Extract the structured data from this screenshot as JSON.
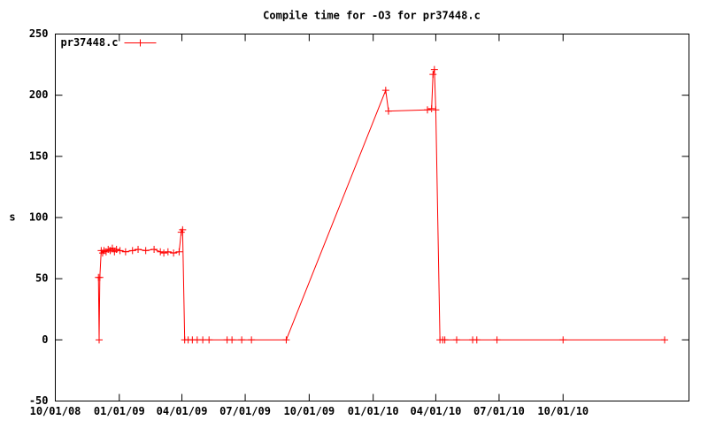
{
  "chart_data": {
    "type": "line",
    "title": "Compile time for -O3 for pr37448.c",
    "y_label": "s",
    "x": [
      "2008-12-02",
      "2008-12-03",
      "2008-12-04",
      "2008-12-06",
      "2008-12-08",
      "2008-12-10",
      "2008-12-13",
      "2008-12-16",
      "2008-12-19",
      "2008-12-22",
      "2008-12-25",
      "2008-12-28",
      "2009-01-02",
      "2009-01-10",
      "2009-01-20",
      "2009-01-28",
      "2009-02-08",
      "2009-02-20",
      "2009-03-01",
      "2009-03-06",
      "2009-03-12",
      "2009-03-20",
      "2009-03-28",
      "2009-03-31",
      "2009-04-02",
      "2009-04-05",
      "2009-04-10",
      "2009-04-16",
      "2009-04-23",
      "2009-05-01",
      "2009-05-10",
      "2009-06-05",
      "2009-06-12",
      "2009-06-26",
      "2009-07-10",
      "2009-08-29",
      "2010-01-19",
      "2010-01-23",
      "2010-03-20",
      "2010-03-26",
      "2010-03-28",
      "2010-03-30",
      "2010-04-01",
      "2010-04-07",
      "2010-04-11",
      "2010-04-14",
      "2010-05-01",
      "2010-05-24",
      "2010-05-30",
      "2010-06-28",
      "2010-10-01",
      "2011-02-24"
    ],
    "series": [
      {
        "name": "pr37448.c",
        "color": "#ff0000",
        "values": [
          51,
          0,
          51,
          73,
          71,
          73,
          72,
          74,
          73,
          75,
          72,
          74,
          73,
          72,
          73,
          74,
          73,
          74,
          72,
          71,
          72,
          71,
          72,
          88,
          90,
          0,
          0,
          0,
          0,
          0,
          0,
          0,
          0,
          0,
          0,
          0,
          204,
          187,
          188,
          189,
          217,
          221,
          188,
          0,
          0,
          0,
          0,
          0,
          0,
          0,
          0,
          0
        ]
      }
    ],
    "xlim": [
      "2008-10-01",
      "2011-03-31"
    ],
    "xticks": [
      {
        "value": "2008-10-01",
        "label": "10/01/08"
      },
      {
        "value": "2009-01-01",
        "label": "01/01/09"
      },
      {
        "value": "2009-04-01",
        "label": "04/01/09"
      },
      {
        "value": "2009-07-01",
        "label": "07/01/09"
      },
      {
        "value": "2009-10-01",
        "label": "10/01/09"
      },
      {
        "value": "2010-01-01",
        "label": "01/01/10"
      },
      {
        "value": "2010-04-01",
        "label": "04/01/10"
      },
      {
        "value": "2010-07-01",
        "label": "07/01/10"
      },
      {
        "value": "2010-10-01",
        "label": "10/01/10"
      }
    ],
    "ylim": [
      -50,
      250
    ],
    "yticks": [
      -50,
      0,
      50,
      100,
      150,
      200,
      250
    ],
    "legend": "top-left"
  }
}
